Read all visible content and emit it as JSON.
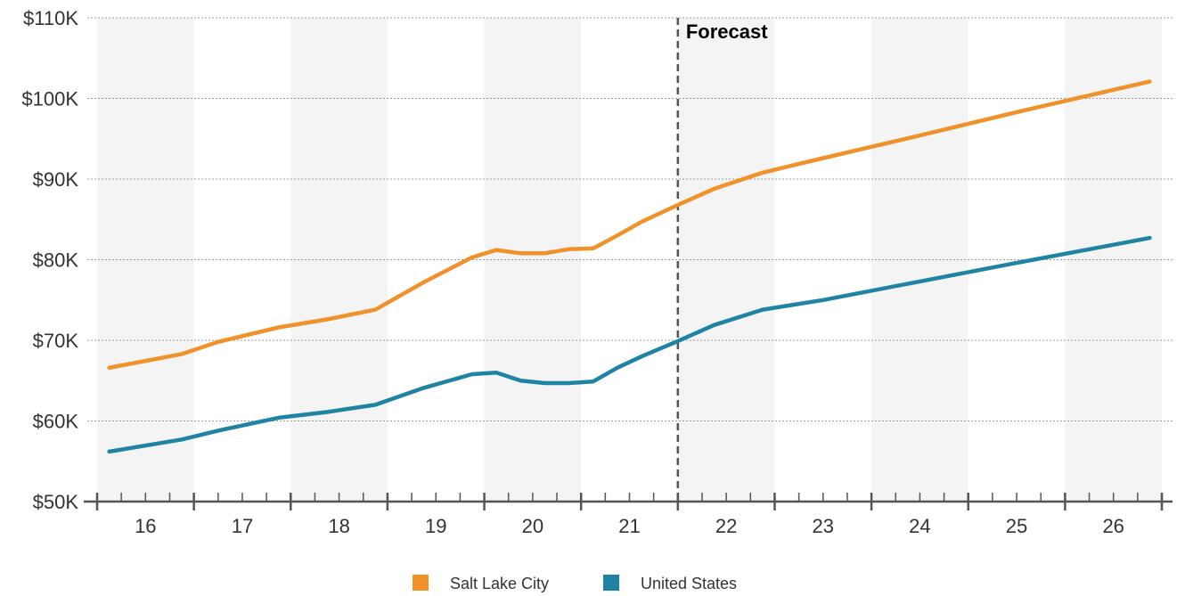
{
  "chart_data": {
    "type": "line",
    "title": "",
    "xlabel": "",
    "ylabel": "",
    "x_unit": "year (20xx, quarterly points)",
    "xlim": [
      2015.5,
      2026.5
    ],
    "ylim": [
      50,
      110
    ],
    "y_ticks": [
      {
        "value": 50,
        "label": "$50K"
      },
      {
        "value": 60,
        "label": "$60K"
      },
      {
        "value": 70,
        "label": "$70K"
      },
      {
        "value": 80,
        "label": "$80K"
      },
      {
        "value": 90,
        "label": "$90K"
      },
      {
        "value": 100,
        "label": "$100K"
      },
      {
        "value": 110,
        "label": "$110K"
      }
    ],
    "x_ticks": [
      {
        "value": 2016,
        "label": "16"
      },
      {
        "value": 2017,
        "label": "17"
      },
      {
        "value": 2018,
        "label": "18"
      },
      {
        "value": 2019,
        "label": "19"
      },
      {
        "value": 2020,
        "label": "20"
      },
      {
        "value": 2021,
        "label": "21"
      },
      {
        "value": 2022,
        "label": "22"
      },
      {
        "value": 2023,
        "label": "23"
      },
      {
        "value": 2024,
        "label": "24"
      },
      {
        "value": 2025,
        "label": "25"
      },
      {
        "value": 2026,
        "label": "26"
      }
    ],
    "grid": "horizontal dotted",
    "shaded_years": [
      2016,
      2018,
      2020,
      2022,
      2024,
      2026
    ],
    "forecast_line": {
      "x": 2021.5,
      "label": "Forecast"
    },
    "legend_position": "bottom-center",
    "series": [
      {
        "name": "Salt Lake City",
        "color": "#f0912a",
        "points": [
          [
            2015.625,
            66.6
          ],
          [
            2016.375,
            68.3
          ],
          [
            2016.75,
            69.8
          ],
          [
            2017.375,
            71.6
          ],
          [
            2017.875,
            72.6
          ],
          [
            2018.375,
            73.8
          ],
          [
            2018.875,
            77.2
          ],
          [
            2019.375,
            80.3
          ],
          [
            2019.625,
            81.2
          ],
          [
            2019.875,
            80.8
          ],
          [
            2020.125,
            80.8
          ],
          [
            2020.375,
            81.3
          ],
          [
            2020.625,
            81.4
          ],
          [
            2020.875,
            83.0
          ],
          [
            2021.125,
            84.7
          ],
          [
            2021.5,
            86.8
          ],
          [
            2021.875,
            88.8
          ],
          [
            2022.375,
            90.8
          ],
          [
            2023.0,
            92.6
          ],
          [
            2024.0,
            95.4
          ],
          [
            2025.0,
            98.3
          ],
          [
            2026.375,
            102.1
          ]
        ]
      },
      {
        "name": "United States",
        "color": "#1f84a3",
        "points": [
          [
            2015.625,
            56.2
          ],
          [
            2016.375,
            57.7
          ],
          [
            2016.75,
            58.8
          ],
          [
            2017.375,
            60.4
          ],
          [
            2017.875,
            61.1
          ],
          [
            2018.375,
            62.0
          ],
          [
            2018.875,
            64.1
          ],
          [
            2019.375,
            65.8
          ],
          [
            2019.625,
            66.0
          ],
          [
            2019.875,
            65.0
          ],
          [
            2020.125,
            64.7
          ],
          [
            2020.375,
            64.7
          ],
          [
            2020.625,
            64.9
          ],
          [
            2020.875,
            66.6
          ],
          [
            2021.125,
            68.0
          ],
          [
            2021.5,
            69.9
          ],
          [
            2021.875,
            71.9
          ],
          [
            2022.375,
            73.8
          ],
          [
            2023.0,
            75.0
          ],
          [
            2024.0,
            77.3
          ],
          [
            2025.0,
            79.6
          ],
          [
            2026.375,
            82.7
          ]
        ]
      }
    ]
  }
}
